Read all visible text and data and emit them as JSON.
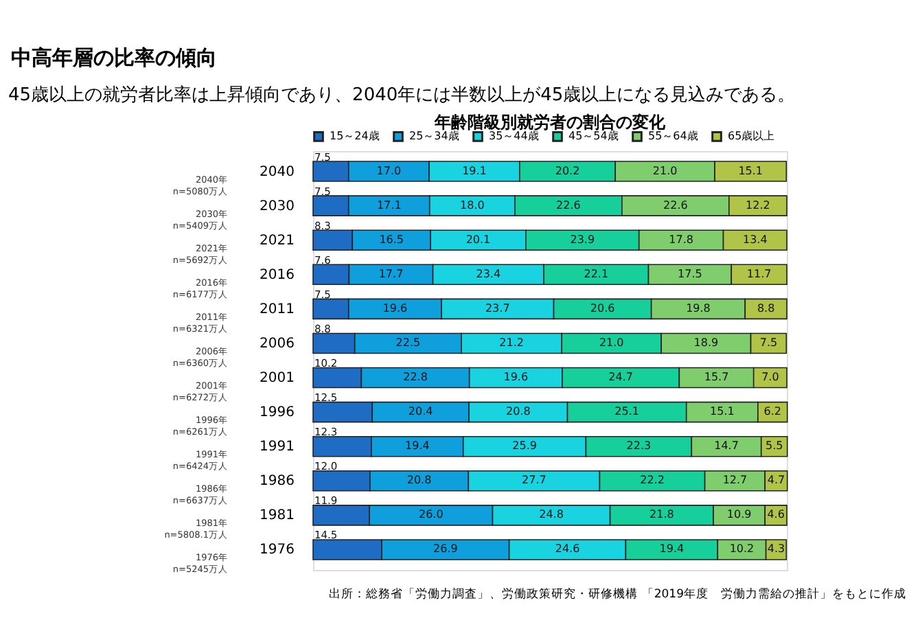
{
  "chart_data": {
    "type": "bar",
    "orientation": "horizontal",
    "stacked": true,
    "title": "中高年層の比率の傾向",
    "subtitle": "45歳以上の就労者比率は上昇傾向であり、2040年には半数以上が45歳以上になる見込みである。",
    "categories": [
      "2040",
      "2030",
      "2021",
      "2016",
      "2011",
      "2006",
      "2001",
      "1996",
      "1991",
      "1986",
      "1981",
      "1976"
    ],
    "series": [
      {
        "name": "15～24歳",
        "color": "#1f6cc4",
        "values": [
          7.5,
          7.5,
          8.3,
          7.6,
          7.5,
          8.8,
          10.2,
          12.5,
          12.3,
          12.0,
          11.9,
          14.5
        ],
        "value_labels": [
          "7.5",
          "7.5",
          "8.3",
          "7.6",
          "7.5",
          "8.8",
          "10.2",
          "12.5",
          "12.3",
          "12.0",
          "11.9",
          "14.5"
        ]
      },
      {
        "name": "25～34歳",
        "color": "#0e9fdc",
        "values": [
          17.0,
          17.1,
          16.5,
          17.7,
          19.6,
          22.5,
          22.8,
          20.4,
          19.4,
          20.8,
          26.0,
          26.9
        ],
        "value_labels": [
          "17.0",
          "17.1",
          "16.5",
          "17.7",
          "19.6",
          "22.5",
          "22.8",
          "20.4",
          "19.4",
          "20.8",
          "26.0",
          "26.9"
        ]
      },
      {
        "name": "35～44歳",
        "color": "#1ad3e0",
        "values": [
          19.1,
          18.0,
          20.1,
          23.4,
          23.7,
          21.2,
          19.6,
          20.8,
          25.9,
          27.7,
          24.8,
          24.6
        ],
        "value_labels": [
          "19.1",
          "18.0",
          "20.1",
          "23.4",
          "23.7",
          "21.2",
          "19.6",
          "20.8",
          "25.9",
          "27.7",
          "24.8",
          "24.6"
        ]
      },
      {
        "name": "45～54歳",
        "color": "#17cf9a",
        "values": [
          20.2,
          22.6,
          23.9,
          22.1,
          20.6,
          21.0,
          24.7,
          25.1,
          22.3,
          22.2,
          21.8,
          19.4
        ],
        "value_labels": [
          "20.2",
          "22.6",
          "23.9",
          "22.1",
          "20.6",
          "21.0",
          "24.7",
          "25.1",
          "22.3",
          "22.2",
          "21.8",
          "19.4"
        ]
      },
      {
        "name": "55～64歳",
        "color": "#7fcd6d",
        "values": [
          21.0,
          22.6,
          17.8,
          17.5,
          19.8,
          18.9,
          15.7,
          15.1,
          14.7,
          12.7,
          10.9,
          10.2
        ],
        "value_labels": [
          "21.0",
          "22.6",
          "17.8",
          "17.5",
          "19.8",
          "18.9",
          "15.7",
          "15.1",
          "14.7",
          "12.7",
          "10.9",
          "10.2"
        ]
      },
      {
        "name": "65歳以上",
        "color": "#b1c448",
        "values": [
          15.1,
          12.2,
          13.4,
          11.7,
          8.8,
          7.5,
          7.0,
          6.2,
          5.5,
          4.7,
          4.6,
          4.3
        ],
        "value_labels": [
          "15.1",
          "12.2",
          "13.4",
          "11.7",
          "8.8",
          "7.5",
          "7.0",
          "6.2",
          "5.5",
          "4.7",
          "4.6",
          "4.3"
        ]
      }
    ],
    "xlim": [
      0,
      100
    ],
    "legend": "top",
    "tick_labels": "y",
    "annotations": [
      "年齢階級別就労者の割合の変化",
      "2040年\nn=5080万人",
      "2030年\nn=5409万人",
      "2021年\nn=5692万人",
      "2016年\nn=6177万人",
      "2011年\nn=6321万人",
      "2006年\nn=6360万人",
      "2001年\nn=6272万人",
      "1996年\nn=6261万人",
      "1991年\nn=6424万人",
      "1986年\nn=6637万人",
      "1981年\nn=5808.1万人",
      "1976年\nn=5245万人",
      "出所：総務省「労働力調査」、労働政策研究・研修機構 「2019年度　労働力需給の推計」をもとに作成"
    ]
  }
}
